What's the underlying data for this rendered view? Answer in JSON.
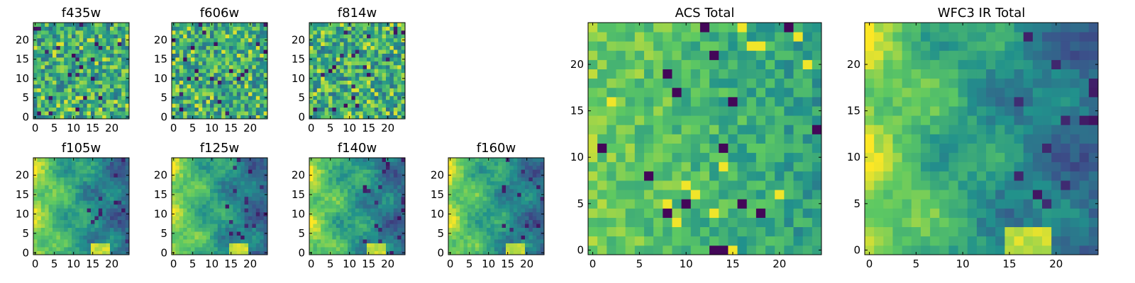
{
  "figure": {
    "colormap": "viridis",
    "colormap_stops": [
      "#440154",
      "#3b528b",
      "#21918c",
      "#5ec962",
      "#fde725"
    ]
  },
  "chart_data": [
    {
      "type": "heatmap",
      "title": "f435w",
      "grid_size": 25,
      "xlim": [
        0,
        24
      ],
      "ylim": [
        0,
        24
      ],
      "xticks": [
        0,
        5,
        10,
        15,
        20
      ],
      "yticks": [
        0,
        5,
        10,
        15,
        20
      ],
      "pattern": "noise",
      "seed": 11
    },
    {
      "type": "heatmap",
      "title": "f606w",
      "grid_size": 25,
      "xlim": [
        0,
        24
      ],
      "ylim": [
        0,
        24
      ],
      "xticks": [
        0,
        5,
        10,
        15,
        20
      ],
      "yticks": [
        0,
        5,
        10,
        15,
        20
      ],
      "pattern": "noise",
      "seed": 23
    },
    {
      "type": "heatmap",
      "title": "f814w",
      "grid_size": 25,
      "xlim": [
        0,
        24
      ],
      "ylim": [
        0,
        24
      ],
      "xticks": [
        0,
        5,
        10,
        15,
        20
      ],
      "yticks": [
        0,
        5,
        10,
        15,
        20
      ],
      "pattern": "noise",
      "seed": 37
    },
    {
      "type": "heatmap",
      "title": "f105w",
      "grid_size": 25,
      "xlim": [
        0,
        24
      ],
      "ylim": [
        0,
        24
      ],
      "xticks": [
        0,
        5,
        10,
        15,
        20
      ],
      "yticks": [
        0,
        5,
        10,
        15,
        20
      ],
      "pattern": "smooth",
      "seed": 41
    },
    {
      "type": "heatmap",
      "title": "f125w",
      "grid_size": 25,
      "xlim": [
        0,
        24
      ],
      "ylim": [
        0,
        24
      ],
      "xticks": [
        0,
        5,
        10,
        15,
        20
      ],
      "yticks": [
        0,
        5,
        10,
        15,
        20
      ],
      "pattern": "smooth",
      "seed": 53
    },
    {
      "type": "heatmap",
      "title": "f140w",
      "grid_size": 25,
      "xlim": [
        0,
        24
      ],
      "ylim": [
        0,
        24
      ],
      "xticks": [
        0,
        5,
        10,
        15,
        20
      ],
      "yticks": [
        0,
        5,
        10,
        15,
        20
      ],
      "pattern": "smooth",
      "seed": 67
    },
    {
      "type": "heatmap",
      "title": "f160w",
      "grid_size": 25,
      "xlim": [
        0,
        24
      ],
      "ylim": [
        0,
        24
      ],
      "xticks": [
        0,
        5,
        10,
        15,
        20
      ],
      "yticks": [
        0,
        5,
        10,
        15,
        20
      ],
      "pattern": "smooth",
      "seed": 79
    },
    {
      "type": "heatmap",
      "title": "ACS Total",
      "grid_size": 25,
      "xlim": [
        0,
        24
      ],
      "ylim": [
        0,
        24
      ],
      "xticks": [
        0,
        5,
        10,
        15,
        20
      ],
      "yticks": [
        0,
        5,
        10,
        15,
        20
      ],
      "pattern": "acs",
      "seed": 83
    },
    {
      "type": "heatmap",
      "title": "WFC3 IR Total",
      "grid_size": 25,
      "xlim": [
        0,
        24
      ],
      "ylim": [
        0,
        24
      ],
      "xticks": [
        0,
        5,
        10,
        15,
        20
      ],
      "yticks": [
        0,
        5,
        10,
        15,
        20
      ],
      "pattern": "smooth",
      "seed": 97
    }
  ]
}
